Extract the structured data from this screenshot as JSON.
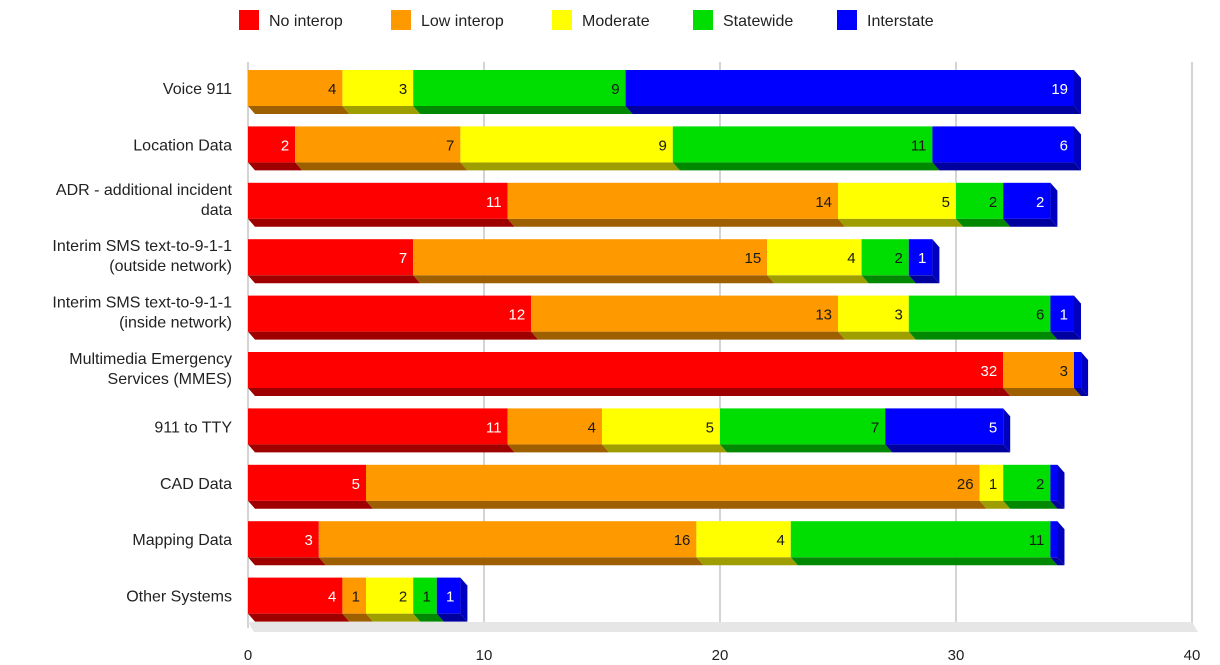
{
  "chart_data": {
    "type": "bar",
    "orientation": "horizontal",
    "stacked": true,
    "categories": [
      [
        "Voice 911"
      ],
      [
        "Location Data"
      ],
      [
        "ADR - additional incident",
        "data"
      ],
      [
        "Interim SMS text-to-9-1-1",
        "(outside network)"
      ],
      [
        "Interim SMS text-to-9-1-1",
        "(inside network)"
      ],
      [
        "Multimedia Emergency",
        "Services (MMES)"
      ],
      [
        "911 to TTY"
      ],
      [
        "CAD Data"
      ],
      [
        "Mapping Data"
      ],
      [
        "Other Systems"
      ]
    ],
    "series": [
      {
        "name": "No interop",
        "color": "#ff0000",
        "values": [
          0,
          2,
          11,
          7,
          12,
          32,
          11,
          5,
          3,
          4
        ]
      },
      {
        "name": "Low interop",
        "color": "#ff9900",
        "values": [
          4,
          7,
          14,
          15,
          13,
          3,
          4,
          26,
          16,
          1
        ]
      },
      {
        "name": "Moderate",
        "color": "#ffff00",
        "values": [
          3,
          9,
          5,
          4,
          3,
          0,
          5,
          1,
          4,
          2
        ]
      },
      {
        "name": "Statewide",
        "color": "#00dd00",
        "values": [
          9,
          11,
          2,
          2,
          6,
          0,
          7,
          2,
          11,
          1
        ]
      },
      {
        "name": "Interstate",
        "color": "#0000ff",
        "values": [
          19,
          6,
          2,
          1,
          1,
          0.3,
          5,
          0.3,
          0.3,
          1
        ]
      }
    ],
    "value_labels": [
      [
        "",
        "4",
        "3",
        "9",
        "19"
      ],
      [
        "2",
        "7",
        "9",
        "11",
        "6"
      ],
      [
        "11",
        "14",
        "5",
        "2",
        "2"
      ],
      [
        "7",
        "15",
        "4",
        "2",
        "1"
      ],
      [
        "12",
        "13",
        "3",
        "6",
        "1"
      ],
      [
        "32",
        "3",
        "",
        "",
        ""
      ],
      [
        "11",
        "4",
        "5",
        "7",
        "5"
      ],
      [
        "5",
        "26",
        "1",
        "2",
        ""
      ],
      [
        "3",
        "16",
        "4",
        "11",
        ""
      ],
      [
        "4",
        "1",
        "2",
        "1",
        "1"
      ]
    ],
    "xlim": [
      0,
      40
    ],
    "xticks": [
      0,
      10,
      20,
      30,
      40
    ],
    "grid": true,
    "legend_position": "top",
    "title": "",
    "xlabel": "",
    "ylabel": ""
  }
}
